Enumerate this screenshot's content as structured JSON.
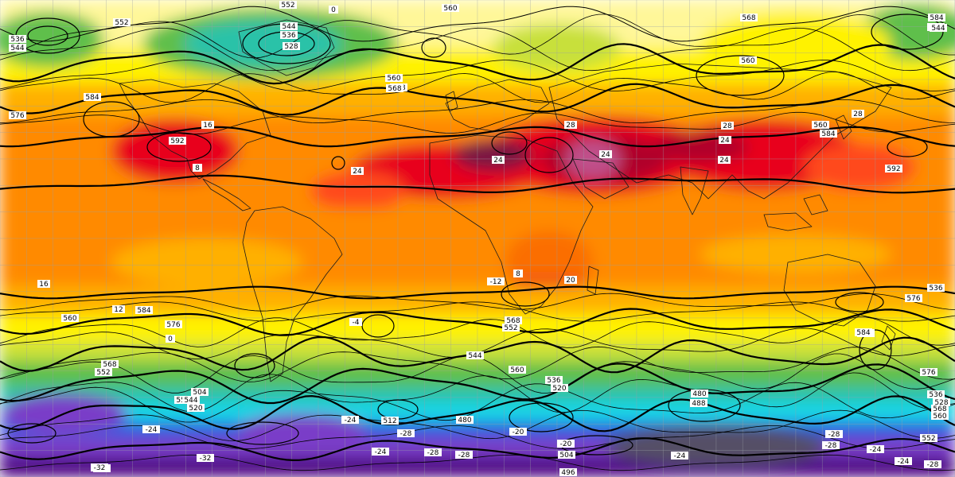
{
  "map": {
    "contour_labels_z500": [
      "552",
      "536",
      "544",
      "544",
      "536",
      "528",
      "560",
      "568",
      "584",
      "592",
      "576",
      "560",
      "568",
      "552",
      "584",
      "576",
      "560",
      "568",
      "552",
      "544",
      "520",
      "504",
      "536",
      "584",
      "576",
      "560",
      "568",
      "552",
      "544",
      "536",
      "520",
      "512",
      "480",
      "488",
      "480",
      "504",
      "496",
      "568",
      "576",
      "584",
      "592",
      "560",
      "552",
      "544",
      "536",
      "528",
      "568",
      "560",
      "584",
      "576",
      "560",
      "568",
      "552"
    ],
    "temperature_labels_t850": [
      "0",
      "16",
      "24",
      "24",
      "28",
      "24",
      "24",
      "28",
      "24",
      "28",
      "12",
      "0",
      "8",
      "16",
      "20",
      "-4",
      "-12",
      "-20",
      "-28",
      "-24",
      "-28",
      "-32",
      "-28",
      "-24",
      "-20",
      "-24",
      "-28",
      "-32",
      "-28",
      "-24",
      "-24",
      "-28",
      "-24",
      "-32",
      "8"
    ],
    "palette": {
      "deep_purple": "#4b0082",
      "violet": "#7a3cc8",
      "blue": "#2c5fe0",
      "cyan": "#18d6e6",
      "teal": "#2bc2a8",
      "green": "#5fbf4c",
      "yellow_green": "#c8e03a",
      "yellow": "#fff200",
      "light_yellow": "#fff799",
      "orange_light": "#ffb000",
      "orange": "#ff8a00",
      "red_orange": "#ff4a1a",
      "red": "#e8001a",
      "dark_red": "#b0002a",
      "maroon": "#7a1242",
      "pink": "#c0508a"
    }
  }
}
